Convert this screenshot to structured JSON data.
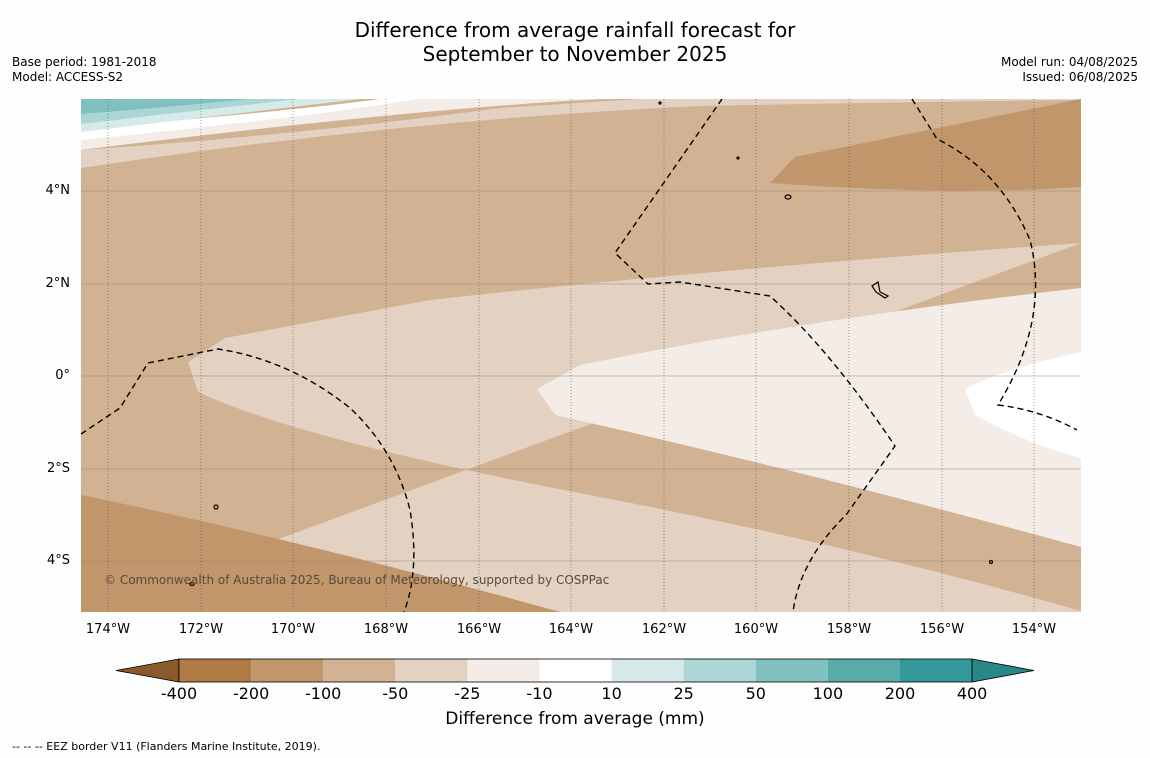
{
  "title_line1": "Difference from average rainfall forecast for",
  "title_line2": "September to November 2025",
  "base_period": "Base period: 1981-2018",
  "model": "Model: ACCESS-S2",
  "model_run": "Model run: 04/08/2025",
  "issued": "Issued: 06/08/2025",
  "lat_labels": [
    "4°N",
    "2°N",
    "0°",
    "2°S",
    "4°S"
  ],
  "lon_labels": [
    "174°W",
    "172°W",
    "170°W",
    "168°W",
    "166°W",
    "164°W",
    "162°W",
    "160°W",
    "158°W",
    "156°W",
    "154°W"
  ],
  "copyright": "© Commonwealth of Australia 2025, Bureau of Meteorology, supported by COSPPac",
  "colorbar": {
    "ticks": [
      "-400",
      "-200",
      "-100",
      "-50",
      "-25",
      "-10",
      "10",
      "25",
      "50",
      "100",
      "200",
      "400"
    ],
    "colors": [
      "#8b5a2b",
      "#b07a45",
      "#c1966b",
      "#d1b293",
      "#e3d1c1",
      "#f4ece6",
      "#ffffff",
      "#d6ebe9",
      "#abd6d5",
      "#80c1bf",
      "#58aba9",
      "#33999a",
      "#2a8787"
    ],
    "title": "Difference from average (mm)"
  },
  "footnote": "--  --  -- EEZ border V11 (Flanders Marine Institute, 2019)."
}
